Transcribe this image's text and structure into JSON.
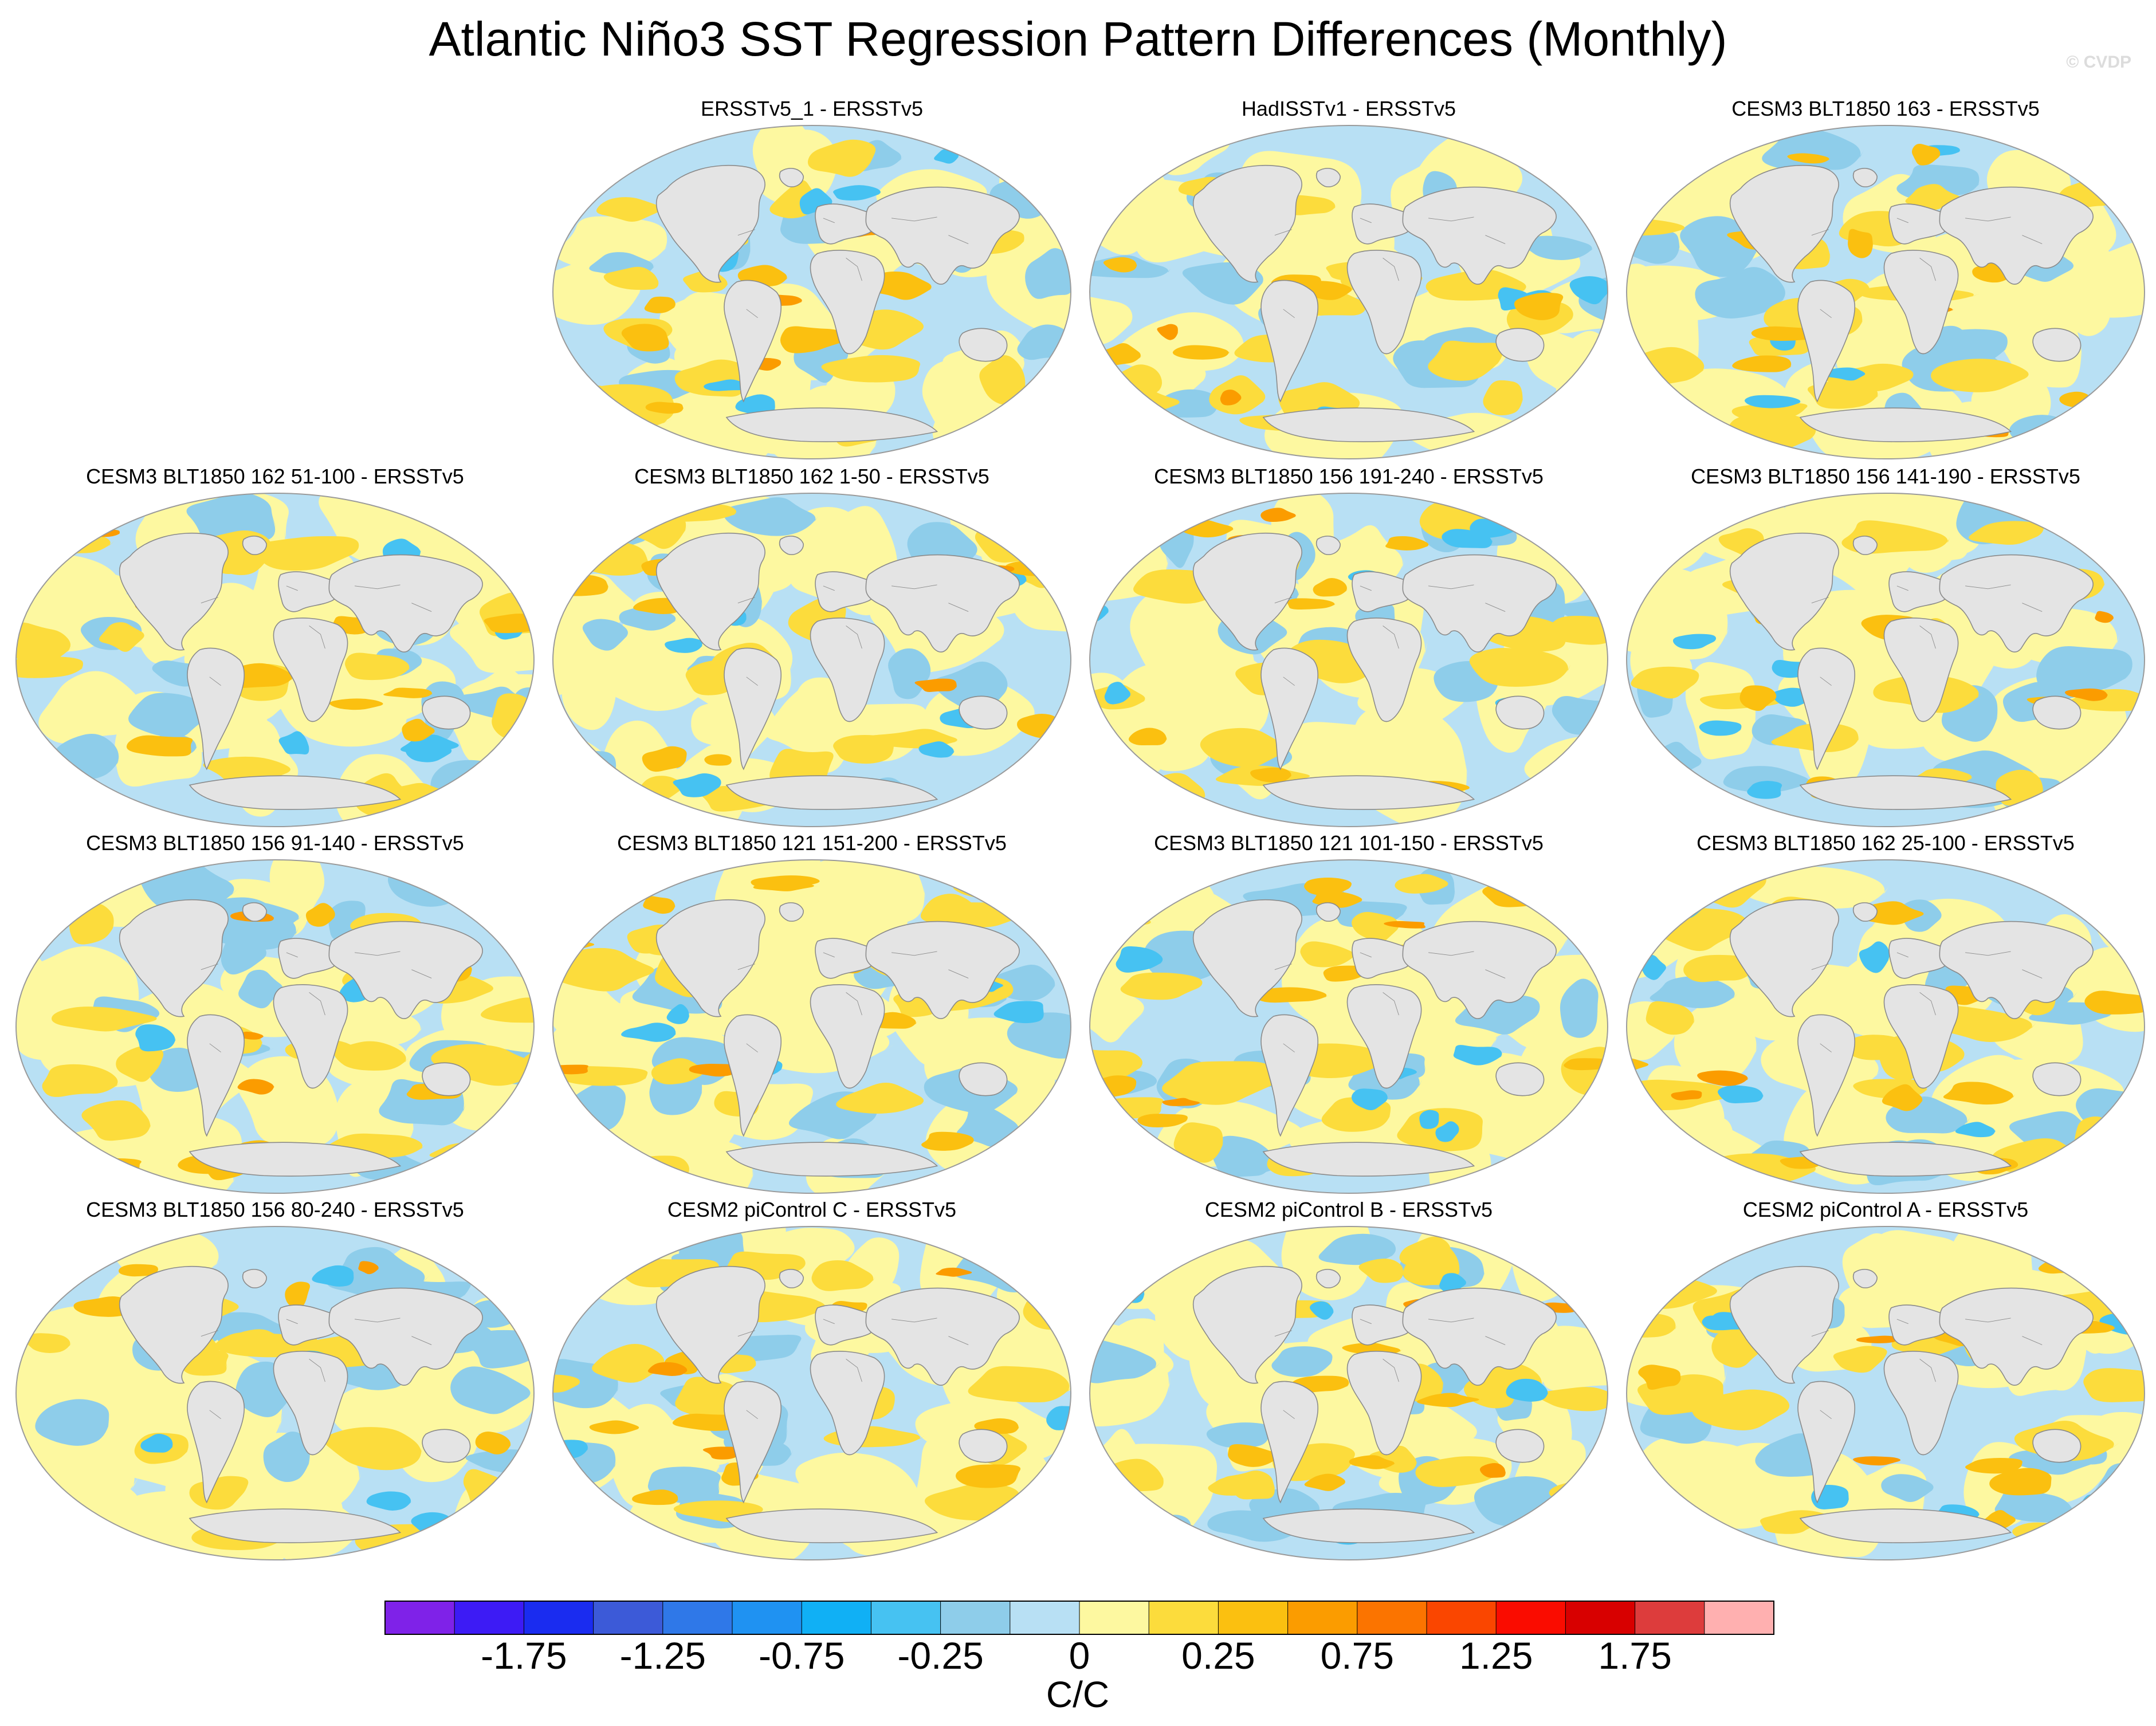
{
  "figure": {
    "title": "Atlantic Niño3 SST Regression Pattern Differences (Monthly)",
    "credit": "© CVDP"
  },
  "panels": [
    {
      "title": "ERSSTv5_1 - ERSSTv5"
    },
    {
      "title": "HadISSTv1 - ERSSTv5"
    },
    {
      "title": "CESM3 BLT1850 163 - ERSSTv5"
    },
    {
      "title": "CESM3 BLT1850 162 51-100 - ERSSTv5"
    },
    {
      "title": "CESM3 BLT1850 162 1-50 - ERSSTv5"
    },
    {
      "title": "CESM3 BLT1850 156 191-240 - ERSSTv5"
    },
    {
      "title": "CESM3 BLT1850 156 141-190 - ERSSTv5"
    },
    {
      "title": "CESM3 BLT1850 156 91-140 - ERSSTv5"
    },
    {
      "title": "CESM3 BLT1850 121 151-200 - ERSSTv5"
    },
    {
      "title": "CESM3 BLT1850 121 101-150 - ERSSTv5"
    },
    {
      "title": "CESM3 BLT1850 162 25-100 - ERSSTv5"
    },
    {
      "title": "CESM3 BLT1850 156 80-240 - ERSSTv5"
    },
    {
      "title": "CESM2 piControl C - ERSSTv5"
    },
    {
      "title": "CESM2 piControl B - ERSSTv5"
    },
    {
      "title": "CESM2 piControl A - ERSSTv5"
    }
  ],
  "colorbar": {
    "units": "C/C",
    "colors": [
      "#7f22e8",
      "#3d1bf5",
      "#1a2cf0",
      "#3c5ad8",
      "#2f78e8",
      "#1f92f2",
      "#10b0f5",
      "#46c2f2",
      "#8ecdea",
      "#b8e0f4",
      "#fdf8a0",
      "#fcdc3c",
      "#fbc010",
      "#fb9c00",
      "#fb7400",
      "#fa4600",
      "#fa0c00",
      "#d80000",
      "#dd3c3c",
      "#ffb0b0"
    ],
    "labels": [
      "-1.75",
      "-1.25",
      "-0.75",
      "-0.25",
      "0",
      "0.25",
      "0.75",
      "1.25",
      "1.75"
    ]
  },
  "map_colors": {
    "land": "#e4e4e4",
    "coast": "#8a8a8a",
    "weak_negative": "#b8e0f4",
    "negative": "#8ecdea",
    "strong_negative": "#46c2f2",
    "weak_positive": "#fdf8a0",
    "positive": "#fcdc3c",
    "strong_positive": "#fbc010",
    "peak_positive": "#fb9c00"
  }
}
